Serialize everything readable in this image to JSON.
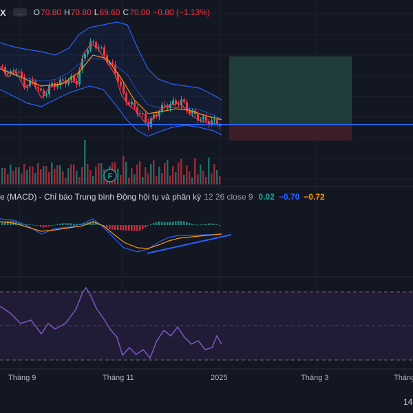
{
  "legend": {
    "symbol_fragment": "X",
    "more_label": "...",
    "open_label": "O",
    "open_value": "70.80",
    "high_label": "H",
    "high_value": "70.80",
    "low_label": "L",
    "low_value": "69.60",
    "close_label": "C",
    "close_value": "70.00",
    "change": "−0.80 (−1.13%)"
  },
  "macd": {
    "title": "e (MACD) - Chỉ báo Trung bình Động hội tụ và phân kỳ",
    "params": "12 26 close 9",
    "value_hist": "0.02",
    "value_macd": "−0.70",
    "value_signal": "−0.72"
  },
  "event_marker": "F",
  "time_axis": [
    "Tháng 9",
    "Tháng 11",
    "2025",
    "Tháng 3",
    "Tháng"
  ],
  "time_fragment": "14",
  "colors": {
    "background": "#131722",
    "up": "#26a69a",
    "down": "#f23645",
    "bollinger": "#2962ff",
    "ema_fast": "#f23645",
    "ema_slow": "#ff9800",
    "rsi": "#7e57c2",
    "trendline": "#2962ff"
  }
}
